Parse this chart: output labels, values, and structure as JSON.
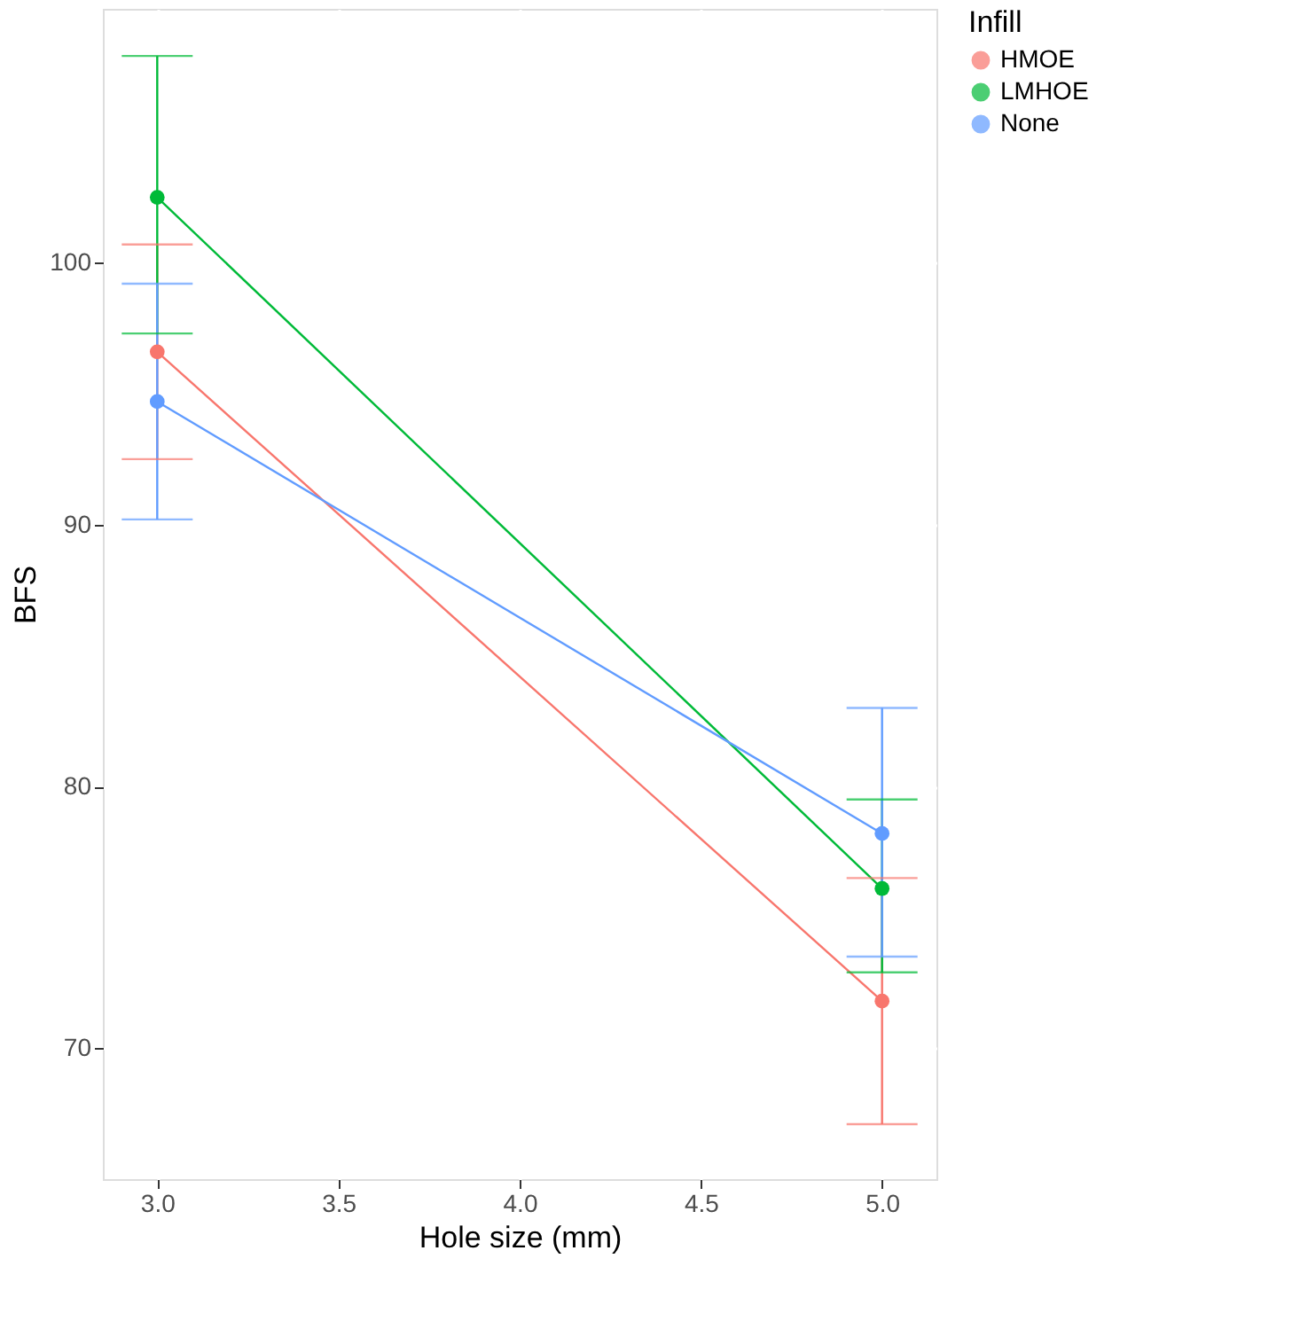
{
  "chart_data": {
    "type": "line",
    "xlabel": "Hole size (mm)",
    "ylabel": "BFS",
    "legend_title": "Infill",
    "x": [
      3.0,
      5.0
    ],
    "series": [
      {
        "name": "HMOE",
        "color": "#f8766d",
        "values": [
          96.6,
          71.8
        ],
        "errors": [
          [
            92.5,
            100.7
          ],
          [
            67.1,
            76.5
          ]
        ]
      },
      {
        "name": "LMHOE",
        "color": "#00ba38",
        "values": [
          102.5,
          76.1
        ],
        "errors": [
          [
            97.3,
            107.9
          ],
          [
            72.9,
            79.5
          ]
        ]
      },
      {
        "name": "None",
        "color": "#619cff",
        "values": [
          94.7,
          78.2
        ],
        "errors": [
          [
            90.2,
            99.2
          ],
          [
            73.5,
            83.0
          ]
        ]
      }
    ],
    "xlim": [
      2.85,
      5.15
    ],
    "xticks": [
      {
        "value": 3.0,
        "label": "3.0"
      },
      {
        "value": 3.5,
        "label": "3.5"
      },
      {
        "value": 4.0,
        "label": "4.0"
      },
      {
        "value": 4.5,
        "label": "4.5"
      },
      {
        "value": 5.0,
        "label": "5.0"
      }
    ],
    "ylim": [
      65.0,
      109.7
    ],
    "yticks": [
      70,
      80,
      90,
      100
    ],
    "grid": true,
    "legend": "right",
    "marker": "circle"
  }
}
